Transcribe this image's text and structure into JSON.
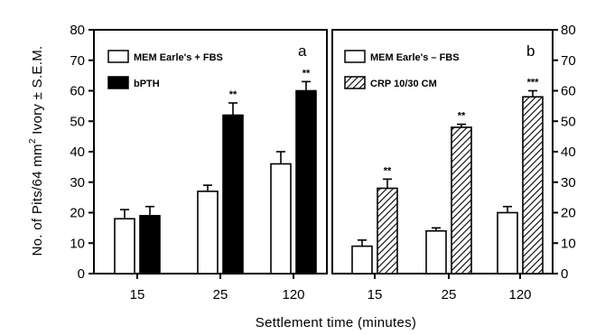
{
  "chart_data": {
    "type": "bar",
    "xlabel": "Settlement time (minutes)",
    "ylabel": "No. of Pits/64 mm² Ivory ± S.E.M.",
    "ylabel_parts": {
      "main": "No. of Pits/64 mm",
      "sup": "2",
      "rest": " Ivory ± S.E.M."
    },
    "ylim": [
      0,
      80
    ],
    "yticks": [
      "0",
      "10",
      "20",
      "30",
      "40",
      "50",
      "60",
      "70",
      "80"
    ],
    "categories": [
      "15",
      "25",
      "120"
    ],
    "panels": [
      {
        "label": "a",
        "legend_position": "top-left",
        "series": [
          {
            "name": "MEM Earle's + FBS",
            "fill": "open",
            "values": [
              18,
              27,
              36
            ],
            "errors": [
              3,
              2,
              4
            ],
            "significance": [
              "",
              "",
              ""
            ]
          },
          {
            "name": "bPTH",
            "fill": "solid",
            "values": [
              19,
              52,
              60
            ],
            "errors": [
              3,
              4,
              3
            ],
            "significance": [
              "",
              "**",
              "**"
            ]
          }
        ]
      },
      {
        "label": "b",
        "legend_position": "top-left",
        "series": [
          {
            "name": "MEM Earle's – FBS",
            "fill": "open",
            "values": [
              9,
              14,
              20
            ],
            "errors": [
              2,
              1,
              2
            ],
            "significance": [
              "",
              "",
              ""
            ]
          },
          {
            "name": "CRP 10/30 CM",
            "fill": "hatched",
            "values": [
              28,
              48,
              58
            ],
            "errors": [
              3,
              1,
              2
            ],
            "significance": [
              "**",
              "**",
              "***"
            ]
          }
        ]
      }
    ]
  },
  "colors": {
    "ink": "#000000",
    "open_fill": "#ffffff"
  }
}
